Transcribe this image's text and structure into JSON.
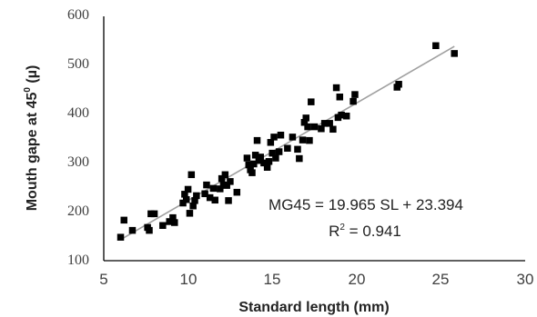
{
  "chart_data": {
    "type": "scatter",
    "xlabel": "Standard length (mm)",
    "ylabel_parts": {
      "main": "Mouth gape at 45",
      "sup": "0",
      "tail": " (µ)"
    },
    "x_ticks": [
      "5",
      "10",
      "15",
      "20",
      "25",
      "30"
    ],
    "y_ticks": [
      "100",
      "200",
      "300",
      "400",
      "500",
      "600"
    ],
    "xlim": [
      5,
      30
    ],
    "ylim": [
      100,
      600
    ],
    "grid": false,
    "trendline": {
      "slope": 19.965,
      "intercept": 23.394,
      "x_range": [
        6,
        25.8
      ],
      "color": "#a0a0a0"
    },
    "equation": "MG45 = 19.965 SL + 23.394",
    "r2_parts": {
      "pre": "R",
      "sup": "2",
      "post": " = 0.941"
    },
    "marker_color": "#000000",
    "points": [
      {
        "x": 6.0,
        "y": 148
      },
      {
        "x": 6.2,
        "y": 183
      },
      {
        "x": 6.7,
        "y": 162
      },
      {
        "x": 7.6,
        "y": 168
      },
      {
        "x": 7.7,
        "y": 162
      },
      {
        "x": 7.8,
        "y": 196
      },
      {
        "x": 8.0,
        "y": 196
      },
      {
        "x": 8.5,
        "y": 172
      },
      {
        "x": 8.9,
        "y": 180
      },
      {
        "x": 9.1,
        "y": 188
      },
      {
        "x": 9.2,
        "y": 178
      },
      {
        "x": 9.7,
        "y": 218
      },
      {
        "x": 9.8,
        "y": 236
      },
      {
        "x": 9.9,
        "y": 225
      },
      {
        "x": 10.0,
        "y": 246
      },
      {
        "x": 10.1,
        "y": 197
      },
      {
        "x": 10.2,
        "y": 276
      },
      {
        "x": 10.3,
        "y": 212
      },
      {
        "x": 10.4,
        "y": 223
      },
      {
        "x": 10.5,
        "y": 233
      },
      {
        "x": 11.0,
        "y": 237
      },
      {
        "x": 11.1,
        "y": 255
      },
      {
        "x": 11.3,
        "y": 229
      },
      {
        "x": 11.5,
        "y": 248
      },
      {
        "x": 11.6,
        "y": 224
      },
      {
        "x": 11.9,
        "y": 247
      },
      {
        "x": 12.0,
        "y": 268
      },
      {
        "x": 12.1,
        "y": 255
      },
      {
        "x": 12.2,
        "y": 276
      },
      {
        "x": 12.3,
        "y": 254
      },
      {
        "x": 12.4,
        "y": 223
      },
      {
        "x": 12.5,
        "y": 262
      },
      {
        "x": 12.9,
        "y": 240
      },
      {
        "x": 13.5,
        "y": 310
      },
      {
        "x": 13.6,
        "y": 296
      },
      {
        "x": 13.7,
        "y": 286
      },
      {
        "x": 13.8,
        "y": 280
      },
      {
        "x": 13.9,
        "y": 298
      },
      {
        "x": 14.0,
        "y": 316
      },
      {
        "x": 14.1,
        "y": 346
      },
      {
        "x": 14.2,
        "y": 305
      },
      {
        "x": 14.3,
        "y": 312
      },
      {
        "x": 14.5,
        "y": 300
      },
      {
        "x": 14.7,
        "y": 291
      },
      {
        "x": 14.8,
        "y": 303
      },
      {
        "x": 14.9,
        "y": 342
      },
      {
        "x": 15.0,
        "y": 320
      },
      {
        "x": 15.1,
        "y": 353
      },
      {
        "x": 15.2,
        "y": 310
      },
      {
        "x": 15.4,
        "y": 323
      },
      {
        "x": 15.5,
        "y": 357
      },
      {
        "x": 15.9,
        "y": 330
      },
      {
        "x": 16.2,
        "y": 353
      },
      {
        "x": 16.5,
        "y": 328
      },
      {
        "x": 16.6,
        "y": 309
      },
      {
        "x": 16.8,
        "y": 347
      },
      {
        "x": 16.9,
        "y": 383
      },
      {
        "x": 17.0,
        "y": 392
      },
      {
        "x": 17.1,
        "y": 374
      },
      {
        "x": 17.2,
        "y": 346
      },
      {
        "x": 17.3,
        "y": 425
      },
      {
        "x": 17.5,
        "y": 374
      },
      {
        "x": 17.9,
        "y": 370
      },
      {
        "x": 18.1,
        "y": 381
      },
      {
        "x": 18.4,
        "y": 381
      },
      {
        "x": 18.6,
        "y": 369
      },
      {
        "x": 18.8,
        "y": 454
      },
      {
        "x": 18.9,
        "y": 393
      },
      {
        "x": 19.0,
        "y": 435
      },
      {
        "x": 19.1,
        "y": 398
      },
      {
        "x": 19.4,
        "y": 396
      },
      {
        "x": 19.8,
        "y": 426
      },
      {
        "x": 19.9,
        "y": 440
      },
      {
        "x": 22.4,
        "y": 455
      },
      {
        "x": 22.5,
        "y": 461
      },
      {
        "x": 24.7,
        "y": 540
      },
      {
        "x": 25.8,
        "y": 524
      }
    ]
  }
}
